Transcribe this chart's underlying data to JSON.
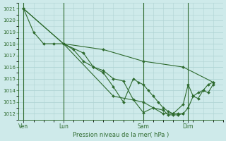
{
  "title": "Pression niveau de la mer( hPa )",
  "bg_color": "#ceeaea",
  "grid_color": "#b0d4d4",
  "line_color": "#2d6a2d",
  "marker_color": "#2d6a2d",
  "ylim": [
    1011.5,
    1021.5
  ],
  "yticks": [
    1012,
    1013,
    1014,
    1015,
    1016,
    1017,
    1018,
    1019,
    1020,
    1021
  ],
  "day_labels": [
    "Ven",
    "Lun",
    "Sam",
    "Dim"
  ],
  "day_positions": [
    0,
    16,
    48,
    66
  ],
  "xlim": [
    -2,
    80
  ],
  "series": [
    {
      "x": [
        0,
        4,
        8,
        12,
        16,
        20,
        24,
        28,
        32,
        36,
        40,
        44,
        46,
        48,
        50,
        52,
        54,
        56,
        58,
        60,
        62,
        64,
        66,
        68,
        70,
        72,
        74,
        76
      ],
      "y": [
        1021.0,
        1019.0,
        1018.0,
        1018.0,
        1018.0,
        1017.5,
        1016.5,
        1016.0,
        1015.5,
        1014.3,
        1013.0,
        1015.0,
        1014.7,
        1014.5,
        1014.0,
        1013.5,
        1013.0,
        1012.5,
        1012.2,
        1012.0,
        1012.0,
        1012.0,
        1012.5,
        1013.5,
        1013.8,
        1014.0,
        1014.5,
        1014.7
      ]
    },
    {
      "x": [
        0,
        16,
        32,
        48,
        64,
        76
      ],
      "y": [
        1021.0,
        1018.0,
        1017.5,
        1016.5,
        1016.0,
        1014.7
      ]
    },
    {
      "x": [
        16,
        36,
        48,
        56,
        60,
        64,
        66,
        68,
        70,
        72,
        74,
        76
      ],
      "y": [
        1018.0,
        1013.5,
        1013.0,
        1012.0,
        1012.0,
        1012.8,
        1014.5,
        1013.5,
        1013.3,
        1014.0,
        1013.8,
        1014.5
      ]
    },
    {
      "x": [
        0,
        16,
        24,
        28,
        32,
        36,
        40,
        44,
        48,
        52,
        56,
        58,
        60,
        62,
        64
      ],
      "y": [
        1021.0,
        1018.0,
        1017.2,
        1016.0,
        1015.7,
        1015.0,
        1014.8,
        1013.2,
        1012.1,
        1012.5,
        1012.3,
        1011.9,
        1011.9,
        1011.9,
        1012.0
      ]
    }
  ]
}
